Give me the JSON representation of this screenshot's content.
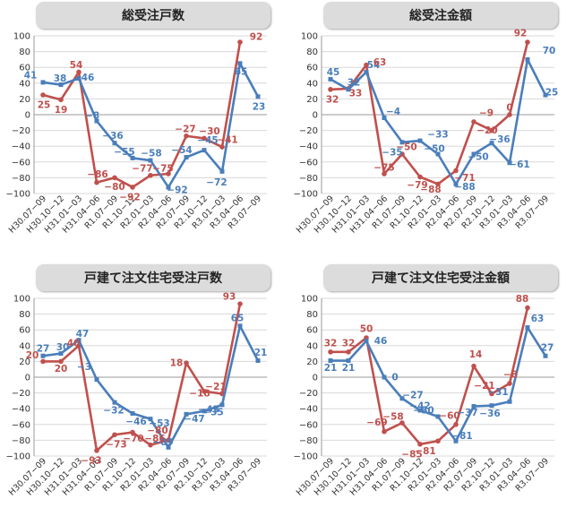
{
  "chart_data": [
    {
      "type": "line",
      "title": "総受注戸数",
      "x": [
        "H30.07−09",
        "H30.10−12",
        "H31.01−03",
        "H31.04−06",
        "R1.07−09",
        "R1.10−12",
        "R2.01−03",
        "R2.04−06",
        "R2.07−09",
        "R2.10−12",
        "R3.01−03",
        "R3.04−06",
        "R3.07−09"
      ],
      "ylim": [
        -100,
        100
      ],
      "yticks": [
        100,
        80,
        60,
        40,
        20,
        0,
        -20,
        -40,
        -60,
        -80,
        -100
      ],
      "colors": {
        "blue": "#4a7ebb",
        "red": "#c0504d"
      },
      "series": [
        {
          "color": "#4a7ebb",
          "values": [
            41,
            38,
            46,
            -8,
            -36,
            -55,
            -58,
            -92,
            -54,
            -45,
            -72,
            65,
            23
          ]
        },
        {
          "color": "#c0504d",
          "values": [
            25,
            19,
            54,
            -86,
            -80,
            -92,
            -77,
            -75,
            -27,
            -30,
            -41,
            92,
            null
          ]
        }
      ]
    },
    {
      "type": "line",
      "title": "総受注金額",
      "x": [
        "H30.07−09",
        "H30.10−12",
        "H31.01−03",
        "H31.04−06",
        "R1.07−09",
        "R1.10−12",
        "R2.01−03",
        "R2.04−06",
        "R2.07−09",
        "R2.10−12",
        "R3.01−03",
        "R3.04−06",
        "R3.07−09"
      ],
      "ylim": [
        -100,
        100
      ],
      "yticks": [
        100,
        80,
        60,
        40,
        20,
        0,
        -20,
        -40,
        -60,
        -80,
        -100
      ],
      "colors": {
        "blue": "#4a7ebb",
        "red": "#c0504d"
      },
      "series": [
        {
          "color": "#4a7ebb",
          "values": [
            45,
            32,
            54,
            -4,
            -35,
            -33,
            -50,
            -88,
            -50,
            -36,
            -61,
            70,
            25
          ]
        },
        {
          "color": "#c0504d",
          "values": [
            32,
            33,
            63,
            -75,
            -50,
            -79,
            -88,
            -71,
            -9,
            -20,
            0,
            92,
            null
          ]
        }
      ]
    },
    {
      "type": "line",
      "title": "戸建て注文住宅受注戸数",
      "x": [
        "H30.07−09",
        "H30.10−12",
        "H31.01−03",
        "H31.04−06",
        "R1.07−09",
        "R1.10−12",
        "R2.01−03",
        "R2.04−06",
        "R2.07−09",
        "R2.10−12",
        "R3.01−03",
        "R3.04−06",
        "R3.07−09"
      ],
      "ylim": [
        -100,
        100
      ],
      "yticks": [
        100,
        80,
        60,
        40,
        20,
        0,
        -20,
        -40,
        -60,
        -80,
        -100
      ],
      "colors": {
        "blue": "#4a7ebb",
        "red": "#c0504d"
      },
      "series": [
        {
          "color": "#4a7ebb",
          "values": [
            27,
            30,
            47,
            -3,
            -32,
            -46,
            -53,
            -89,
            -47,
            -43,
            -35,
            65,
            21
          ]
        },
        {
          "color": "#c0504d",
          "values": [
            20,
            20,
            40,
            -93,
            -73,
            -70,
            -86,
            -80,
            18,
            -18,
            -21,
            93,
            null
          ]
        }
      ]
    },
    {
      "type": "line",
      "title": "戸建て注文住宅受注金額",
      "x": [
        "H30.07−09",
        "H30.10−12",
        "H31.01−03",
        "H31.04−06",
        "R1.07−09",
        "R1.10−12",
        "R2.01−03",
        "R2.04−06",
        "R2.07−09",
        "R2.10−12",
        "R3.01−03",
        "R3.04−06",
        "R3.07−09"
      ],
      "ylim": [
        -100,
        100
      ],
      "yticks": [
        100,
        80,
        60,
        40,
        20,
        0,
        -20,
        -40,
        -60,
        -80,
        -100
      ],
      "colors": {
        "blue": "#4a7ebb",
        "red": "#c0504d"
      },
      "series": [
        {
          "color": "#4a7ebb",
          "values": [
            21,
            21,
            46,
            0,
            -27,
            -42,
            -50,
            -81,
            -37,
            -36,
            -31,
            63,
            27
          ]
        },
        {
          "color": "#c0504d",
          "values": [
            32,
            32,
            50,
            -69,
            -58,
            -85,
            -81,
            -60,
            14,
            -21,
            -8,
            88,
            null
          ]
        }
      ]
    }
  ]
}
